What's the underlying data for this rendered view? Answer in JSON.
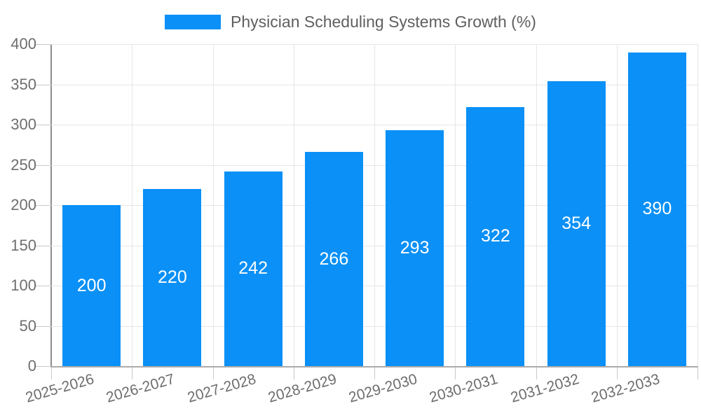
{
  "legend": {
    "swatch_icon": "legend-swatch",
    "label": "Physician Scheduling Systems Growth (%)"
  },
  "chart_data": {
    "type": "bar",
    "title": "Physician Scheduling Systems Growth (%)",
    "categories": [
      "2025-2026",
      "2026-2027",
      "2027-2028",
      "2028-2029",
      "2029-2030",
      "2030-2031",
      "2031-2032",
      "2032-2033"
    ],
    "values": [
      200,
      220,
      242,
      266,
      293,
      322,
      354,
      390
    ],
    "xlabel": "",
    "ylabel": "",
    "ylim": [
      0,
      400
    ],
    "yticks": [
      0,
      50,
      100,
      150,
      200,
      250,
      300,
      350,
      400
    ],
    "grid": true,
    "legend_position": "top-center",
    "value_labels": "inside-center"
  },
  "colors": {
    "bar": "#0a90f6",
    "gridline": "#e6e6e6",
    "tick": "#c9c9c9",
    "y_axis_line": "#8c8c8c",
    "x_axis_line": "#ababab",
    "axis_text": "#6e6e6e",
    "legend_text": "#5f5f5f",
    "value_label_text": "#ffffff"
  }
}
